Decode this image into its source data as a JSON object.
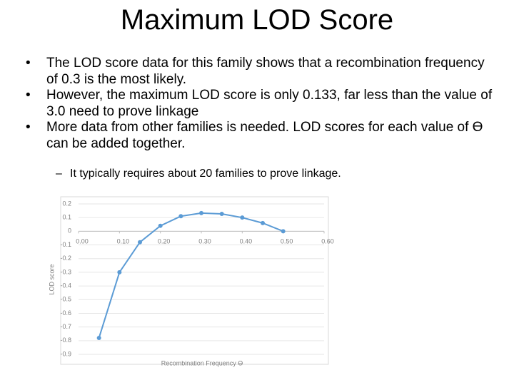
{
  "header": {
    "title": "Maximum LOD Score"
  },
  "bullets": [
    "The LOD score data for this family shows that a recombination frequency of 0.3 is the most likely.",
    "However, the maximum LOD score is only 0.133, far less than the value of 3.0 need to prove linkage",
    "More data from other families is needed. LOD scores for each value of Ɵ can be added together."
  ],
  "sub_bullet": "It typically requires about 20 families to prove linkage.",
  "chart_data": {
    "type": "line",
    "x_label": "Recombination Frequency Ɵ",
    "y_label": "LOD score",
    "x": [
      0.05,
      0.1,
      0.15,
      0.2,
      0.25,
      0.3,
      0.35,
      0.4,
      0.45,
      0.5
    ],
    "series": [
      {
        "color": "#5b9bd5",
        "values": [
          -0.78,
          -0.3,
          -0.08,
          0.04,
          0.11,
          0.133,
          0.127,
          0.1,
          0.06,
          0.0
        ]
      }
    ],
    "xlim": [
      0,
      0.6
    ],
    "xticks": [
      {
        "value": 0,
        "label": "0.00"
      },
      {
        "value": 0.1,
        "label": "0.10"
      },
      {
        "value": 0.2,
        "label": "0.20"
      },
      {
        "value": 0.3,
        "label": "0.30"
      },
      {
        "value": 0.4,
        "label": "0.40"
      },
      {
        "value": 0.5,
        "label": "0.50"
      },
      {
        "value": 0.6,
        "label": "0.60"
      }
    ],
    "ylim": [
      -0.9,
      0.2
    ],
    "yticks": [
      0.2,
      0.1,
      0,
      -0.1,
      -0.2,
      -0.3,
      -0.4,
      -0.5,
      -0.6,
      -0.7,
      -0.8,
      -0.9
    ],
    "grid": true
  }
}
